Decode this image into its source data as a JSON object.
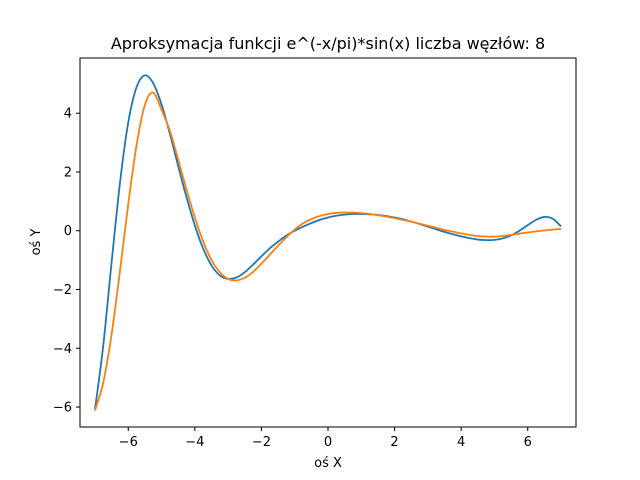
{
  "chart_data": {
    "type": "line",
    "title": "Aproksymacja funkcji e^(-x/pi)*sin(x) liczba węzłów: 8",
    "xlabel": "oś X",
    "ylabel": "oś Y",
    "xlim": [
      -7.45,
      7.45
    ],
    "ylim": [
      -6.68,
      5.88
    ],
    "xticks": [
      -6,
      -4,
      -2,
      0,
      2,
      4,
      6
    ],
    "yticks": [
      -6,
      -4,
      -2,
      0,
      2,
      4
    ],
    "xtick_labels": [
      "−6",
      "−4",
      "−2",
      "0",
      "2",
      "4",
      "6"
    ],
    "ytick_labels": [
      "−6",
      "−4",
      "−2",
      "0",
      "2",
      "4"
    ],
    "grid": false,
    "series": [
      {
        "color": "#1f77b4",
        "x": [
          -7.0,
          -6.75,
          -6.5,
          -6.25,
          -6.0,
          -5.75,
          -5.5,
          -5.25,
          -5.0,
          -4.75,
          -4.5,
          -4.25,
          -4.0,
          -3.75,
          -3.5,
          -3.25,
          -3.0,
          -2.75,
          -2.5,
          -2.25,
          -2.0,
          -1.75,
          -1.5,
          -1.25,
          -1.0,
          -0.75,
          -0.5,
          -0.25,
          0.0,
          0.25,
          0.5,
          0.75,
          1.0,
          1.25,
          1.5,
          1.75,
          2.0,
          2.25,
          2.5,
          2.75,
          3.0,
          3.25,
          3.5,
          3.75,
          4.0,
          4.25,
          4.5,
          4.75,
          5.0,
          5.25,
          5.5,
          5.75,
          6.0,
          6.25,
          6.5,
          6.75,
          7.0
        ],
        "y": [
          -6.09,
          -3.89,
          -1.07,
          1.62,
          3.69,
          4.89,
          5.29,
          5.02,
          4.3,
          3.3,
          2.2,
          1.14,
          0.18,
          -0.61,
          -1.18,
          -1.52,
          -1.64,
          -1.59,
          -1.41,
          -1.15,
          -0.87,
          -0.6,
          -0.37,
          -0.16,
          0.0,
          0.14,
          0.26,
          0.37,
          0.45,
          0.51,
          0.55,
          0.57,
          0.57,
          0.56,
          0.54,
          0.5,
          0.45,
          0.39,
          0.31,
          0.23,
          0.14,
          0.05,
          -0.04,
          -0.12,
          -0.19,
          -0.25,
          -0.3,
          -0.32,
          -0.31,
          -0.26,
          -0.16,
          0.0,
          0.19,
          0.37,
          0.47,
          0.41,
          0.15
        ]
      },
      {
        "color": "#ff7f0e",
        "x": [
          -7.0,
          -6.75,
          -6.5,
          -6.25,
          -6.0,
          -5.75,
          -5.5,
          -5.25,
          -5.0,
          -4.75,
          -4.5,
          -4.25,
          -4.0,
          -3.75,
          -3.5,
          -3.25,
          -3.0,
          -2.75,
          -2.5,
          -2.25,
          -2.0,
          -1.75,
          -1.5,
          -1.25,
          -1.0,
          -0.75,
          -0.5,
          -0.25,
          0.0,
          0.25,
          0.5,
          0.75,
          1.0,
          1.25,
          1.5,
          1.75,
          2.0,
          2.25,
          2.5,
          2.75,
          3.0,
          3.25,
          3.5,
          3.75,
          4.0,
          4.25,
          4.5,
          4.75,
          5.0,
          5.25,
          5.5,
          5.75,
          6.0,
          6.25,
          6.5,
          6.75,
          7.0
        ],
        "y": [
          -6.12,
          -5.16,
          -3.52,
          -1.38,
          0.91,
          2.92,
          4.29,
          4.7,
          4.12,
          3.4,
          2.42,
          1.4,
          0.45,
          -0.37,
          -1.0,
          -1.41,
          -1.64,
          -1.69,
          -1.6,
          -1.4,
          -1.12,
          -0.82,
          -0.51,
          -0.22,
          0.04,
          0.25,
          0.4,
          0.5,
          0.57,
          0.61,
          0.62,
          0.62,
          0.6,
          0.57,
          0.53,
          0.48,
          0.43,
          0.37,
          0.31,
          0.24,
          0.17,
          0.1,
          0.03,
          -0.03,
          -0.09,
          -0.14,
          -0.18,
          -0.2,
          -0.2,
          -0.18,
          -0.14,
          -0.1,
          -0.06,
          -0.02,
          0.01,
          0.04,
          0.06
        ]
      }
    ]
  }
}
